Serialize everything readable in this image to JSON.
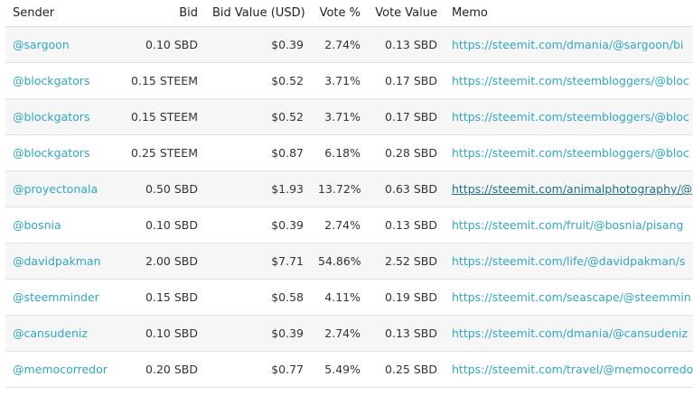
{
  "table": {
    "columns": {
      "sender": "Sender",
      "bid": "Bid",
      "bid_value": "Bid Value (USD)",
      "vote_pct": "Vote %",
      "vote_value": "Vote Value",
      "memo": "Memo"
    },
    "rows": [
      {
        "sender": "@sargoon",
        "bid": "0.10 SBD",
        "bid_value": "$0.39",
        "vote_pct": "2.74%",
        "vote_value": "0.13 SBD",
        "memo": "https://steemit.com/dmania/@sargoon/bi"
      },
      {
        "sender": "@blockgators",
        "bid": "0.15 STEEM",
        "bid_value": "$0.52",
        "vote_pct": "3.71%",
        "vote_value": "0.17 SBD",
        "memo": "https://steemit.com/steembloggers/@bloc"
      },
      {
        "sender": "@blockgators",
        "bid": "0.15 STEEM",
        "bid_value": "$0.52",
        "vote_pct": "3.71%",
        "vote_value": "0.17 SBD",
        "memo": "https://steemit.com/steembloggers/@bloc"
      },
      {
        "sender": "@blockgators",
        "bid": "0.25 STEEM",
        "bid_value": "$0.87",
        "vote_pct": "6.18%",
        "vote_value": "0.28 SBD",
        "memo": "https://steemit.com/steembloggers/@bloc"
      },
      {
        "sender": "@proyectonala",
        "bid": "0.50 SBD",
        "bid_value": "$1.93",
        "vote_pct": "13.72%",
        "vote_value": "0.63 SBD",
        "memo": "https://steemit.com/animalphotography/@"
      },
      {
        "sender": "@bosnia",
        "bid": "0.10 SBD",
        "bid_value": "$0.39",
        "vote_pct": "2.74%",
        "vote_value": "0.13 SBD",
        "memo": "https://steemit.com/fruit/@bosnia/pisang"
      },
      {
        "sender": "@davidpakman",
        "bid": "2.00 SBD",
        "bid_value": "$7.71",
        "vote_pct": "54.86%",
        "vote_value": "2.52 SBD",
        "memo": "https://steemit.com/life/@davidpakman/s"
      },
      {
        "sender": "@steemminder",
        "bid": "0.15 SBD",
        "bid_value": "$0.58",
        "vote_pct": "4.11%",
        "vote_value": "0.19 SBD",
        "memo": "https://steemit.com/seascape/@steemmin"
      },
      {
        "sender": "@cansudeniz",
        "bid": "0.10 SBD",
        "bid_value": "$0.39",
        "vote_pct": "2.74%",
        "vote_value": "0.13 SBD",
        "memo": "https://steemit.com/dmania/@cansudeniz"
      },
      {
        "sender": "@memocorredor",
        "bid": "0.20 SBD",
        "bid_value": "$0.77",
        "vote_pct": "5.49%",
        "vote_value": "0.25 SBD",
        "memo": "https://steemit.com/travel/@memocorredo"
      }
    ]
  },
  "colors": {
    "link": "#30a6c7",
    "link_hover": "#1f6f87",
    "row_stripe": "#f6f6f6",
    "border": "#e2e2e2"
  }
}
